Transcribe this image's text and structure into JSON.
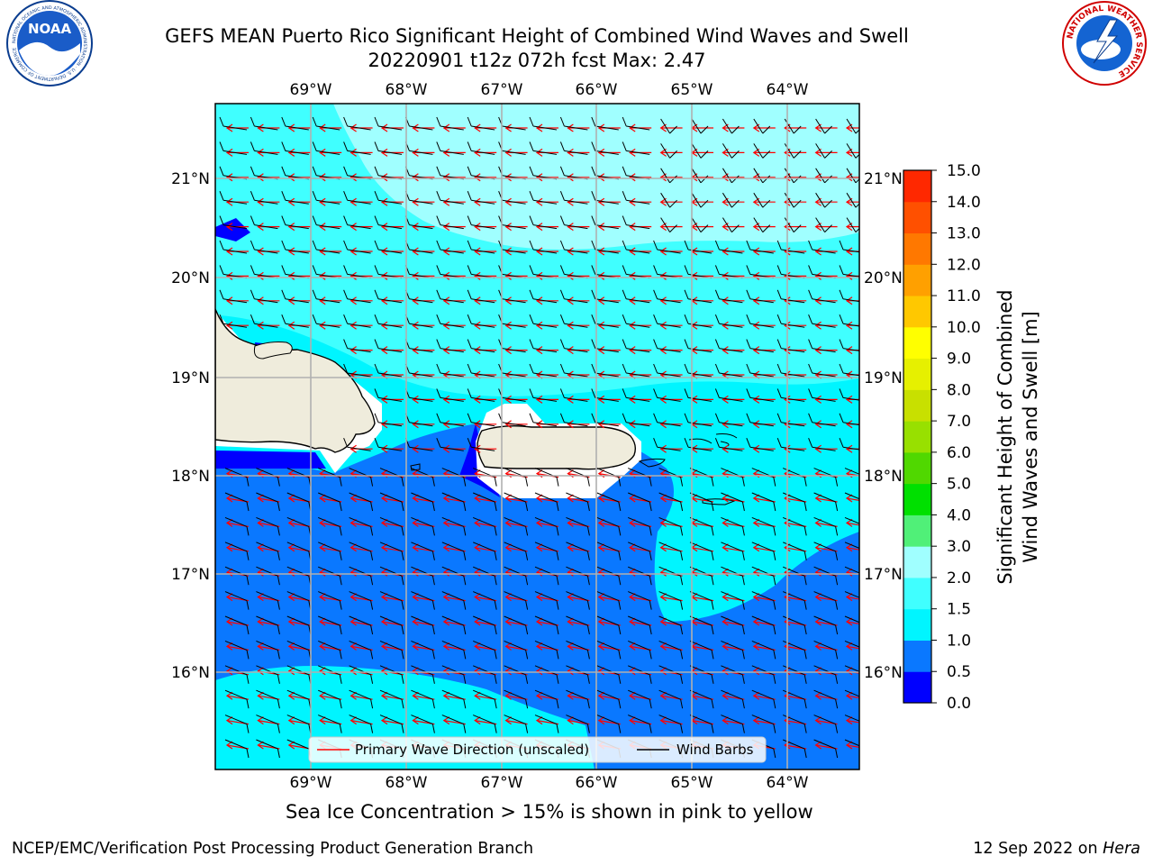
{
  "title_line1": "GEFS MEAN Puerto Rico Significant Height of Combined Wind Waves and Swell",
  "title_line2": "20220901 t12z 072h fcst   Max: 2.47",
  "logo_left_text": "NOAA",
  "logo_left_ring": "NATIONAL OCEANIC AND ATMOSPHERIC ADMINISTRATION · U.S. DEPARTMENT OF COMMERCE",
  "logo_right_ring": "NATIONAL WEATHER SERVICE",
  "lon_ticks": [
    "69°W",
    "68°W",
    "67°W",
    "66°W",
    "65°W",
    "64°W"
  ],
  "lat_ticks": [
    "21°N",
    "20°N",
    "19°N",
    "18°N",
    "17°N",
    "16°N"
  ],
  "legend": {
    "wave_label": "Primary Wave Direction (unscaled)",
    "barb_label": "Wind Barbs",
    "wave_color": "#ff0000",
    "barb_color": "#000000"
  },
  "colorbar": {
    "label_line1": "Significant Height of Combined",
    "label_line2": "Wind Waves and Swell [m]",
    "ticks": [
      "0.0",
      "0.5",
      "1.0",
      "1.5",
      "2.0",
      "3.0",
      "4.0",
      "5.0",
      "6.0",
      "7.0",
      "8.0",
      "9.0",
      "10.0",
      "11.0",
      "12.0",
      "13.0",
      "14.0",
      "15.0"
    ],
    "colors": [
      "#0000ff",
      "#0a78ff",
      "#00f5ff",
      "#40ffff",
      "#a0ffff",
      "#50f078",
      "#00e000",
      "#50d800",
      "#98e000",
      "#c8e000",
      "#e6f000",
      "#ffff00",
      "#ffc800",
      "#ffa000",
      "#ff7800",
      "#ff5000",
      "#ff2800"
    ]
  },
  "map_colors": {
    "land": "#efecdc",
    "white_mask": "#ffffff",
    "c_0_05": "#0000ff",
    "c_05_10": "#0a78ff",
    "c_10_15": "#00f5ff",
    "c_15_20": "#40ffff",
    "c_20_30": "#a0ffff"
  },
  "footer_ice": "Sea Ice Concentration > 15% is shown in pink to yellow",
  "footer_left": "NCEP/EMC/Verification Post Processing Product Generation Branch",
  "footer_right_date": "12 Sep 2022 on ",
  "footer_right_host": "Hera"
}
